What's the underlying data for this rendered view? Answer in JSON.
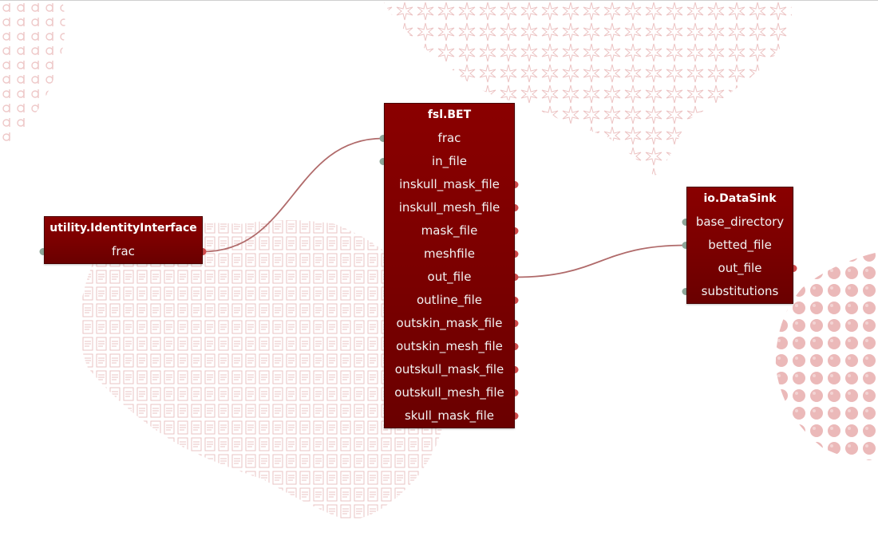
{
  "colors": {
    "node_bg": "#7e0000",
    "edge": "#b06a6a",
    "port_input": "#8fa79a",
    "port_output": "#d04a4a",
    "background_pattern": "#e7b8b8"
  },
  "nodes": [
    {
      "id": "identity",
      "title": "utility.IdentityInterface",
      "ports": [
        {
          "label": "frac",
          "in": true,
          "out": true
        }
      ]
    },
    {
      "id": "bet",
      "title": "fsl.BET",
      "ports": [
        {
          "label": "frac",
          "in": true,
          "out": false
        },
        {
          "label": "in_file",
          "in": true,
          "out": false
        },
        {
          "label": "inskull_mask_file",
          "in": false,
          "out": true
        },
        {
          "label": "inskull_mesh_file",
          "in": false,
          "out": true
        },
        {
          "label": "mask_file",
          "in": false,
          "out": true
        },
        {
          "label": "meshfile",
          "in": false,
          "out": true
        },
        {
          "label": "out_file",
          "in": false,
          "out": true
        },
        {
          "label": "outline_file",
          "in": false,
          "out": true
        },
        {
          "label": "outskin_mask_file",
          "in": false,
          "out": true
        },
        {
          "label": "outskin_mesh_file",
          "in": false,
          "out": true
        },
        {
          "label": "outskull_mask_file",
          "in": false,
          "out": true
        },
        {
          "label": "outskull_mesh_file",
          "in": false,
          "out": true
        },
        {
          "label": "skull_mask_file",
          "in": false,
          "out": true
        }
      ]
    },
    {
      "id": "datasink",
      "title": "io.DataSink",
      "ports": [
        {
          "label": "base_directory",
          "in": true,
          "out": false
        },
        {
          "label": "betted_file",
          "in": true,
          "out": false
        },
        {
          "label": "out_file",
          "in": false,
          "out": true
        },
        {
          "label": "substitutions",
          "in": true,
          "out": false
        }
      ]
    }
  ],
  "edges": [
    {
      "from": "identity.frac",
      "to": "bet.frac"
    },
    {
      "from": "bet.out_file",
      "to": "datasink.betted_file"
    }
  ]
}
